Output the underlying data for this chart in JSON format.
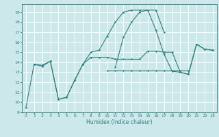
{
  "xlabel": "Humidex (Indice chaleur)",
  "xlim": [
    -0.5,
    23.5
  ],
  "ylim": [
    9,
    19.8
  ],
  "yticks": [
    9,
    10,
    11,
    12,
    13,
    14,
    15,
    16,
    17,
    18,
    19
  ],
  "xticks": [
    0,
    1,
    2,
    3,
    4,
    5,
    6,
    7,
    8,
    9,
    10,
    11,
    12,
    13,
    14,
    15,
    16,
    17,
    18,
    19,
    20,
    21,
    22,
    23
  ],
  "bg_color": "#cce8ea",
  "grid_color": "#ffffff",
  "line_color": "#2e7d7d",
  "lines": [
    [
      9.5,
      13.8,
      13.7,
      14.1,
      10.3,
      10.5,
      12.2,
      13.8,
      15.0,
      15.2,
      16.6,
      18.0,
      19.0,
      19.2,
      19.2,
      19.2,
      17.2,
      14.8,
      13.1,
      13.0,
      12.8,
      15.8,
      15.3,
      15.2
    ],
    [
      null,
      13.8,
      13.6,
      14.1,
      10.3,
      10.5,
      12.2,
      13.8,
      14.5,
      14.5,
      14.5,
      14.3,
      14.3,
      14.3,
      14.3,
      15.1,
      15.1,
      15.0,
      15.0,
      13.0,
      12.8,
      15.8,
      15.3,
      15.2
    ],
    [
      null,
      null,
      null,
      null,
      null,
      null,
      null,
      null,
      null,
      null,
      null,
      13.5,
      16.5,
      18.0,
      19.0,
      19.2,
      19.2,
      17.0,
      null,
      null,
      null,
      null,
      null,
      null
    ],
    [
      null,
      null,
      null,
      null,
      null,
      null,
      null,
      null,
      null,
      null,
      13.2,
      13.2,
      13.2,
      13.2,
      13.2,
      13.2,
      13.2,
      13.2,
      13.2,
      13.2,
      13.2,
      null,
      null,
      null
    ]
  ]
}
